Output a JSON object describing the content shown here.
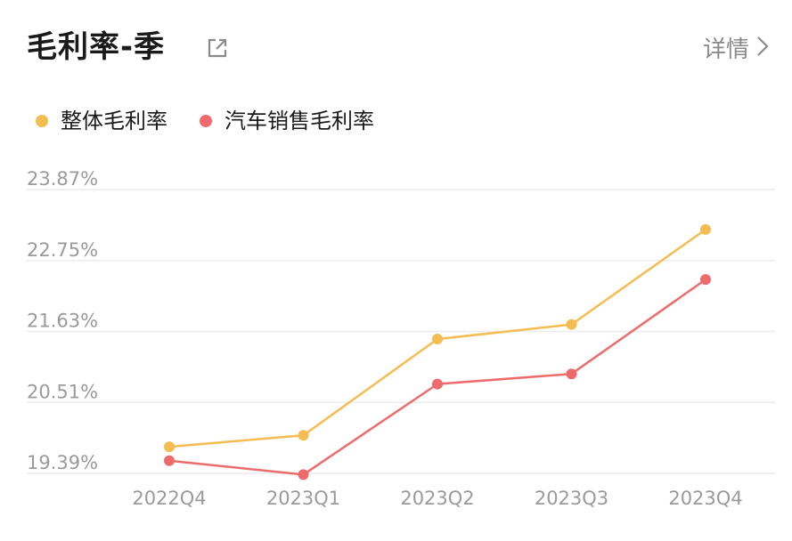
{
  "header": {
    "title": "毛利率-季",
    "share_icon": "external-link-icon",
    "detail_label": "详情",
    "detail_icon": "chevron-right-icon"
  },
  "chart_data": {
    "type": "line",
    "categories": [
      "2022Q4",
      "2023Q1",
      "2023Q2",
      "2023Q3",
      "2023Q4"
    ],
    "series": [
      {
        "name": "整体毛利率",
        "color": "#F5BC51",
        "values": [
          19.81,
          19.99,
          21.51,
          21.74,
          23.24
        ]
      },
      {
        "name": "汽车销售毛利率",
        "color": "#EE6B6B",
        "values": [
          19.59,
          19.37,
          20.8,
          20.96,
          22.45
        ]
      }
    ],
    "yticks": [
      "23.87%",
      "22.75%",
      "21.63%",
      "20.51%",
      "19.39%"
    ],
    "ytick_values": [
      23.87,
      22.75,
      21.63,
      20.51,
      19.39
    ],
    "ylim": [
      19.39,
      23.87
    ],
    "grid": true,
    "legend": "top-left"
  }
}
